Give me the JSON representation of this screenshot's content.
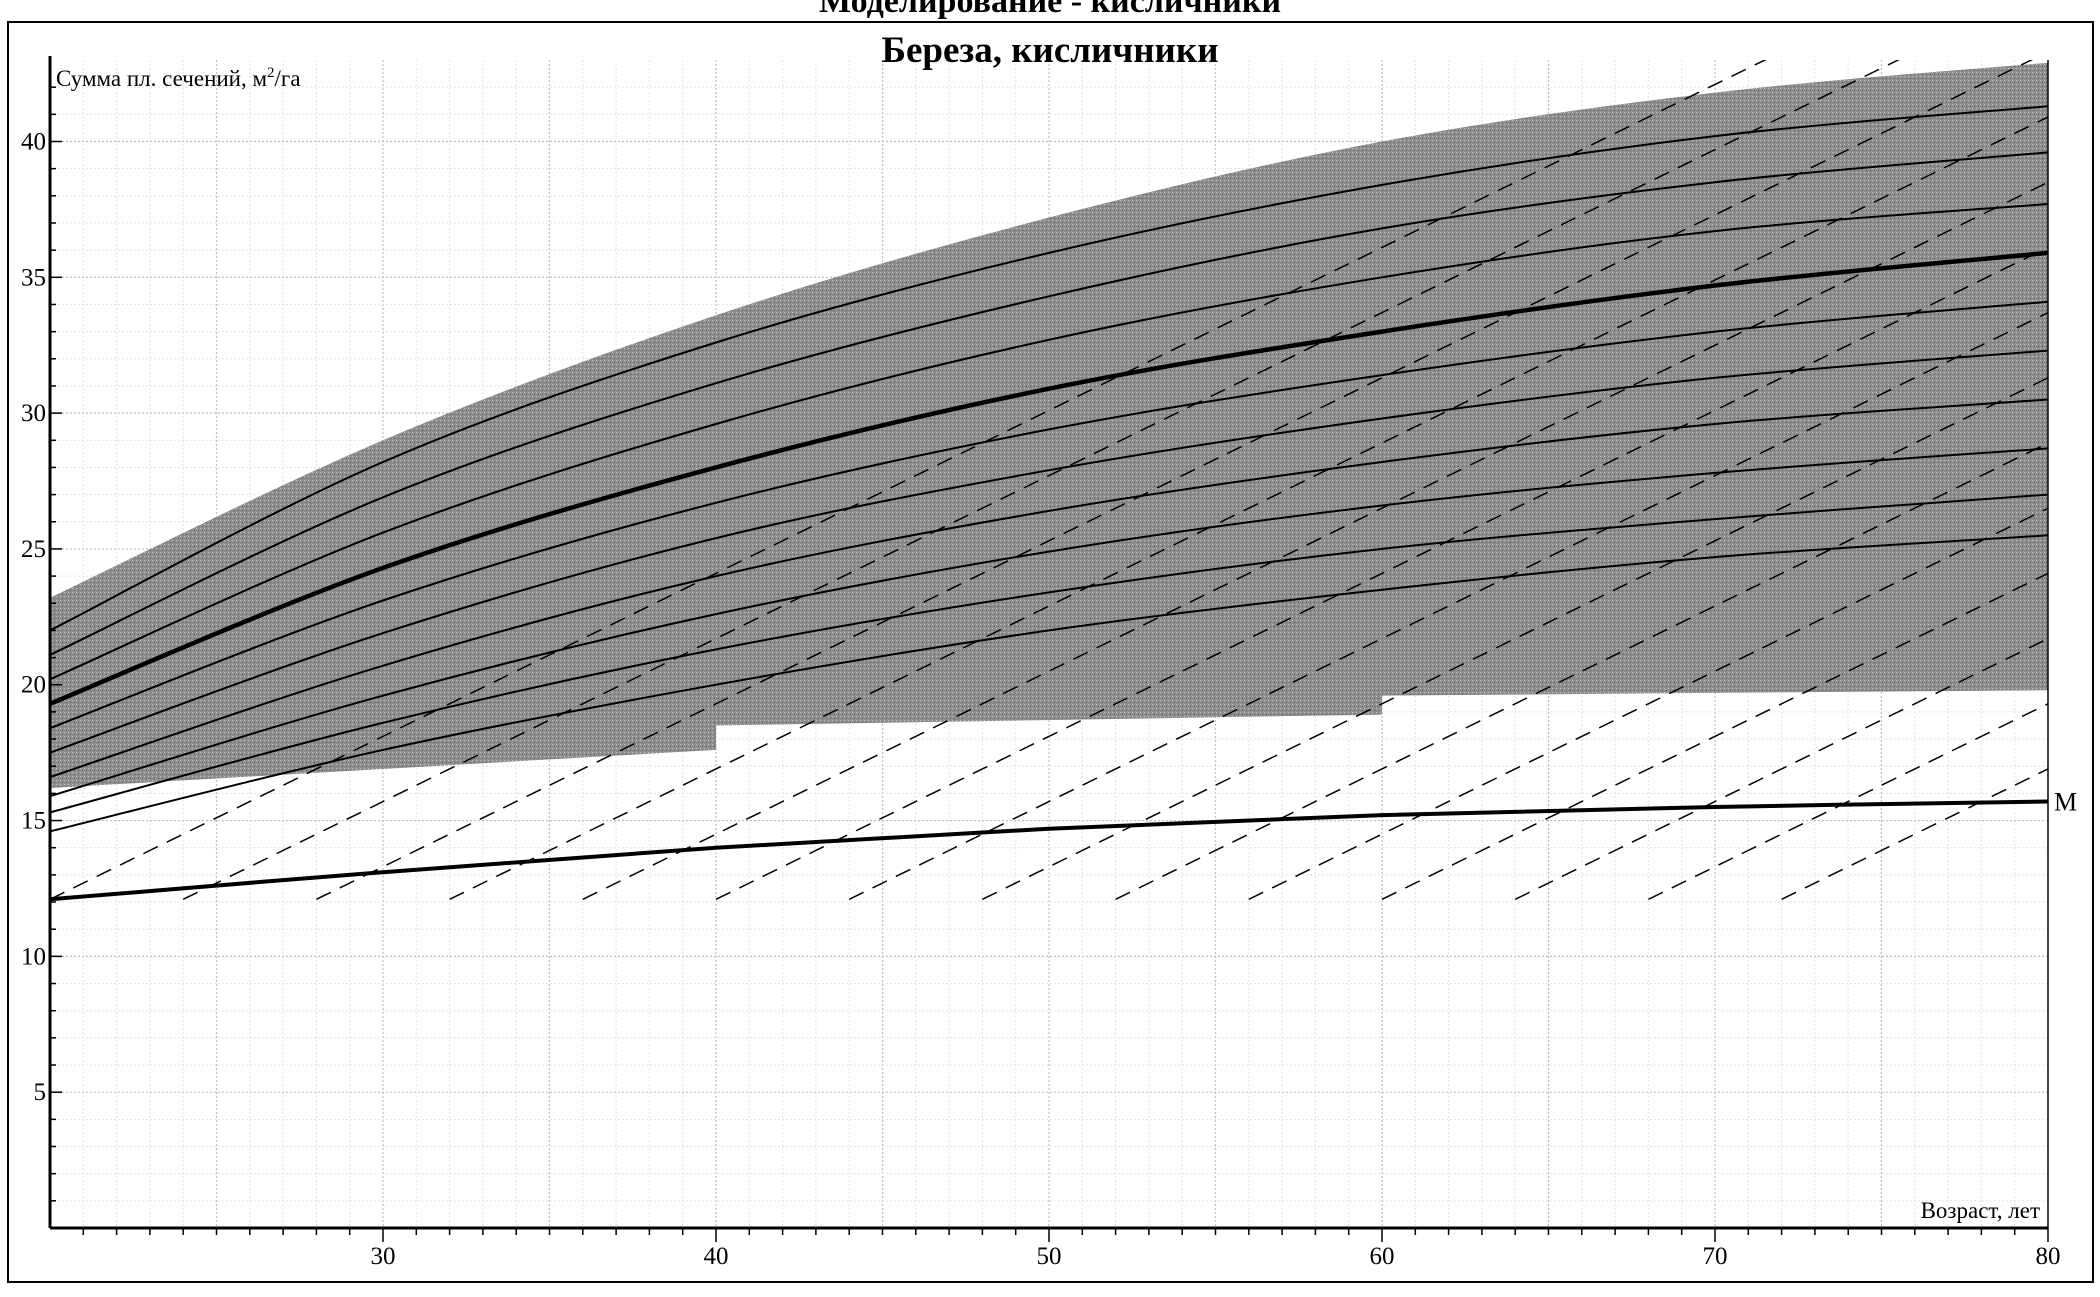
{
  "chart_data": {
    "type": "line",
    "title": "Береза, кисличники",
    "xlabel": "Возраст, лет",
    "ylabel": "Сумма пл. сечений, м²/га",
    "ylabel_parts": {
      "pre": "Сумма пл. сечений, м",
      "sup": "2",
      "post": "/га"
    },
    "xlim": [
      20,
      80
    ],
    "ylim": [
      0,
      43
    ],
    "x_ticks": [
      30,
      40,
      50,
      60,
      70,
      80
    ],
    "y_ticks": [
      5,
      10,
      15,
      20,
      25,
      30,
      35,
      40
    ],
    "grid": true,
    "band_upper": {
      "x": [
        20,
        30,
        40,
        50,
        60,
        70,
        80
      ],
      "y": [
        23.2,
        29.0,
        33.6,
        37.2,
        40.0,
        41.8,
        42.9
      ]
    },
    "band_lower": {
      "x": [
        20,
        40,
        40,
        60,
        60,
        80
      ],
      "y": [
        16.2,
        17.6,
        18.5,
        18.9,
        19.6,
        19.8
      ]
    },
    "growth_curves": [
      {
        "x": [
          20,
          30,
          40,
          50,
          60,
          70,
          80
        ],
        "y": [
          22.0,
          28.2,
          32.6,
          35.9,
          38.4,
          40.2,
          41.3
        ]
      },
      {
        "x": [
          20,
          30,
          40,
          50,
          60,
          70,
          80
        ],
        "y": [
          21.1,
          26.9,
          31.1,
          34.3,
          36.8,
          38.5,
          39.6
        ]
      },
      {
        "x": [
          20,
          30,
          40,
          50,
          60,
          70,
          80
        ],
        "y": [
          20.2,
          25.6,
          29.6,
          32.7,
          35.0,
          36.7,
          37.7
        ]
      },
      {
        "x": [
          20,
          30,
          40,
          50,
          60,
          70,
          80
        ],
        "y": [
          19.3,
          24.3,
          28.0,
          30.9,
          33.0,
          34.7,
          35.9
        ]
      },
      {
        "x": [
          20,
          30,
          40,
          50,
          60,
          70,
          80
        ],
        "y": [
          18.4,
          23.1,
          26.7,
          29.4,
          31.4,
          33.0,
          34.1
        ]
      },
      {
        "x": [
          20,
          30,
          40,
          50,
          60,
          70,
          80
        ],
        "y": [
          17.5,
          21.9,
          25.4,
          27.9,
          29.8,
          31.3,
          32.3
        ]
      },
      {
        "x": [
          20,
          30,
          40,
          50,
          60,
          70,
          80
        ],
        "y": [
          16.6,
          20.7,
          24.0,
          26.4,
          28.2,
          29.6,
          30.5
        ]
      },
      {
        "x": [
          20,
          30,
          40,
          50,
          60,
          70,
          80
        ],
        "y": [
          15.9,
          19.6,
          22.6,
          24.9,
          26.6,
          27.8,
          28.7
        ]
      },
      {
        "x": [
          20,
          30,
          40,
          50,
          60,
          70,
          80
        ],
        "y": [
          15.3,
          18.6,
          21.3,
          23.4,
          25.0,
          26.1,
          27.0
        ]
      },
      {
        "x": [
          20,
          30,
          40,
          50,
          60,
          70,
          80
        ],
        "y": [
          14.6,
          17.6,
          20.0,
          22.0,
          23.5,
          24.7,
          25.5
        ]
      }
    ],
    "main_curve_index": 3,
    "minimum_line": {
      "name": "M",
      "x": [
        20,
        30,
        40,
        50,
        60,
        70,
        80
      ],
      "y": [
        12.1,
        13.1,
        14.0,
        14.7,
        15.2,
        15.5,
        15.7
      ]
    },
    "dashed_lines": {
      "slope": 0.6,
      "intercepts_at_x20": [
        12.1,
        9.7,
        7.3,
        4.9,
        2.5,
        0.1,
        -2.3,
        -4.7,
        -7.1,
        -9.5,
        -11.9,
        -14.3,
        -16.7,
        -19.1
      ]
    }
  },
  "partial_title": "Моделирование - кисличники"
}
